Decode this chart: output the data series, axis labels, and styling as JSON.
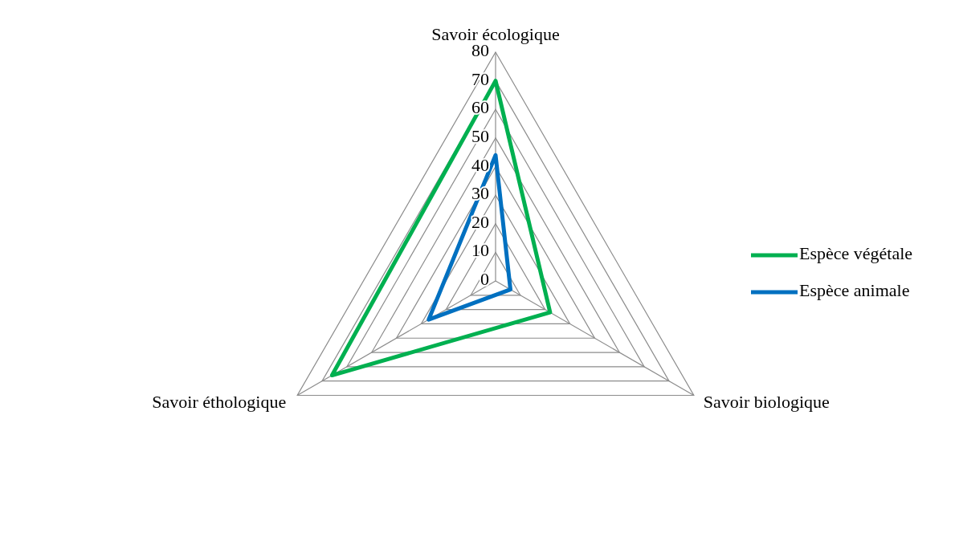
{
  "chart_data": {
    "type": "radar",
    "categories": [
      "Savoir écologique",
      "Savoir biologique",
      "Savoir éthologique"
    ],
    "series": [
      {
        "name": "Espèce végétale",
        "color": "#00b050",
        "values": [
          70,
          22,
          66
        ]
      },
      {
        "name": "Espèce animale",
        "color": "#0070c0",
        "values": [
          44,
          6,
          27
        ]
      }
    ],
    "ylim": [
      0,
      80
    ],
    "yticks": [
      0,
      10,
      20,
      30,
      40,
      50,
      60,
      70,
      80
    ],
    "grid": true,
    "legend": "right"
  }
}
